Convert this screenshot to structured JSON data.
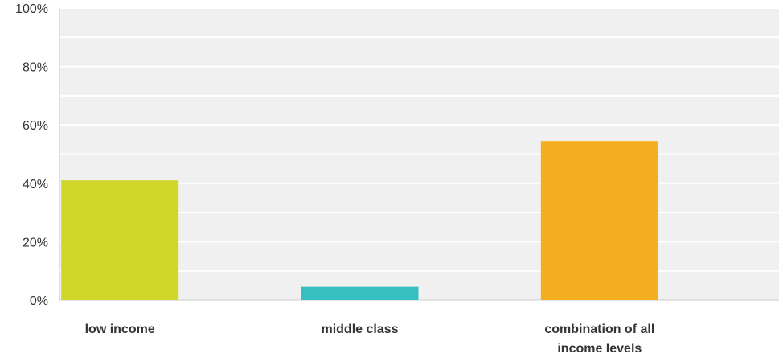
{
  "chart_data": {
    "type": "bar",
    "categories": [
      "low income",
      "middle class",
      "combination of all income levels"
    ],
    "category_label_lines": [
      [
        "low income"
      ],
      [
        "middle class"
      ],
      [
        "combination of all",
        "income levels"
      ]
    ],
    "values": [
      41,
      4.5,
      54.5
    ],
    "colors": [
      "#d0d62a",
      "#35bfbf",
      "#f6ae21"
    ],
    "y_ticks": [
      0,
      20,
      40,
      60,
      80,
      100
    ],
    "y_tick_labels": [
      "0%",
      "20%",
      "40%",
      "60%",
      "80%",
      "100%"
    ],
    "ylim": [
      0,
      100
    ],
    "y_unit": "%",
    "grid": true,
    "minor_grid": true,
    "plot_background": "#f0f0f0",
    "grid_color": "#ffffff",
    "title": "",
    "xlabel": "",
    "ylabel": ""
  }
}
